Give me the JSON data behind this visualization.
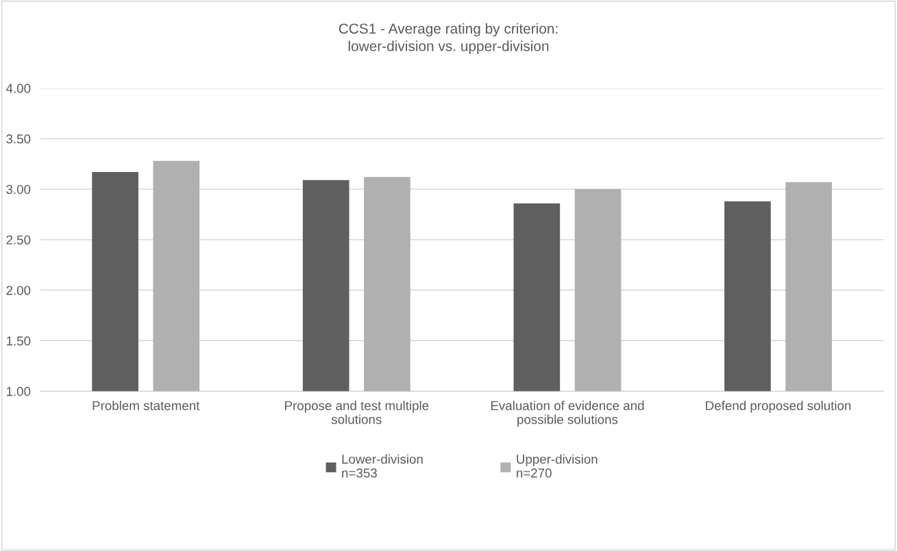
{
  "chart_data": {
    "type": "bar",
    "title": "CCS1 - Average rating by criterion:\nlower-division vs. upper-division",
    "categories": [
      "Problem statement",
      "Propose and test multiple\nsolutions",
      "Evaluation of evidence and\npossible solutions",
      "Defend proposed solution"
    ],
    "series": [
      {
        "name": "Lower-division\nn=353",
        "color": "#5f5f5f",
        "values": [
          3.17,
          3.09,
          2.86,
          2.88
        ]
      },
      {
        "name": "Upper-division\nn=270",
        "color": "#b0b0b0",
        "values": [
          3.28,
          3.12,
          3.0,
          3.07
        ]
      }
    ],
    "ylim": [
      1,
      4
    ],
    "yticks": [
      {
        "value": 1,
        "label": "1.00"
      },
      {
        "value": 1.5,
        "label": "1.50"
      },
      {
        "value": 2,
        "label": "2.00"
      },
      {
        "value": 2.5,
        "label": "2.50"
      },
      {
        "value": 3,
        "label": "3.00"
      },
      {
        "value": 3.5,
        "label": "3.50"
      },
      {
        "value": 4,
        "label": "4.00"
      }
    ],
    "grid": "y",
    "legend": "bottom"
  }
}
